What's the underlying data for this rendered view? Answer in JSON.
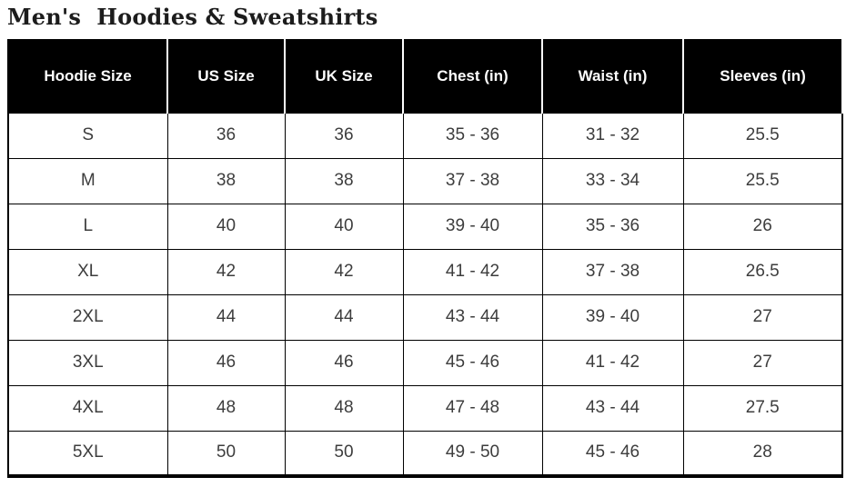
{
  "page": {
    "title": "Men's  Hoodies & Sweatshirts"
  },
  "table": {
    "headers": [
      "Hoodie Size",
      "US Size",
      "UK Size",
      "Chest (in)",
      "Waist (in)",
      "Sleeves (in)"
    ],
    "rows": [
      [
        "S",
        "36",
        "36",
        "35 - 36",
        "31 - 32",
        "25.5"
      ],
      [
        "M",
        "38",
        "38",
        "37 - 38",
        "33 - 34",
        "25.5"
      ],
      [
        "L",
        "40",
        "40",
        "39 - 40",
        "35 - 36",
        "26"
      ],
      [
        "XL",
        "42",
        "42",
        "41 - 42",
        "37 - 38",
        "26.5"
      ],
      [
        "2XL",
        "44",
        "44",
        "43 - 44",
        "39 - 40",
        "27"
      ],
      [
        "3XL",
        "46",
        "46",
        "45 - 46",
        "41 - 42",
        "27"
      ],
      [
        "4XL",
        "48",
        "48",
        "47 - 48",
        "43 - 44",
        "27.5"
      ],
      [
        "5XL",
        "50",
        "50",
        "49 - 50",
        "45 - 46",
        "28"
      ]
    ]
  },
  "colors": {
    "header_bg": "#000000",
    "header_text": "#ffffff",
    "body_text": "#3d3d3d",
    "border": "#000000",
    "background": "#ffffff"
  }
}
